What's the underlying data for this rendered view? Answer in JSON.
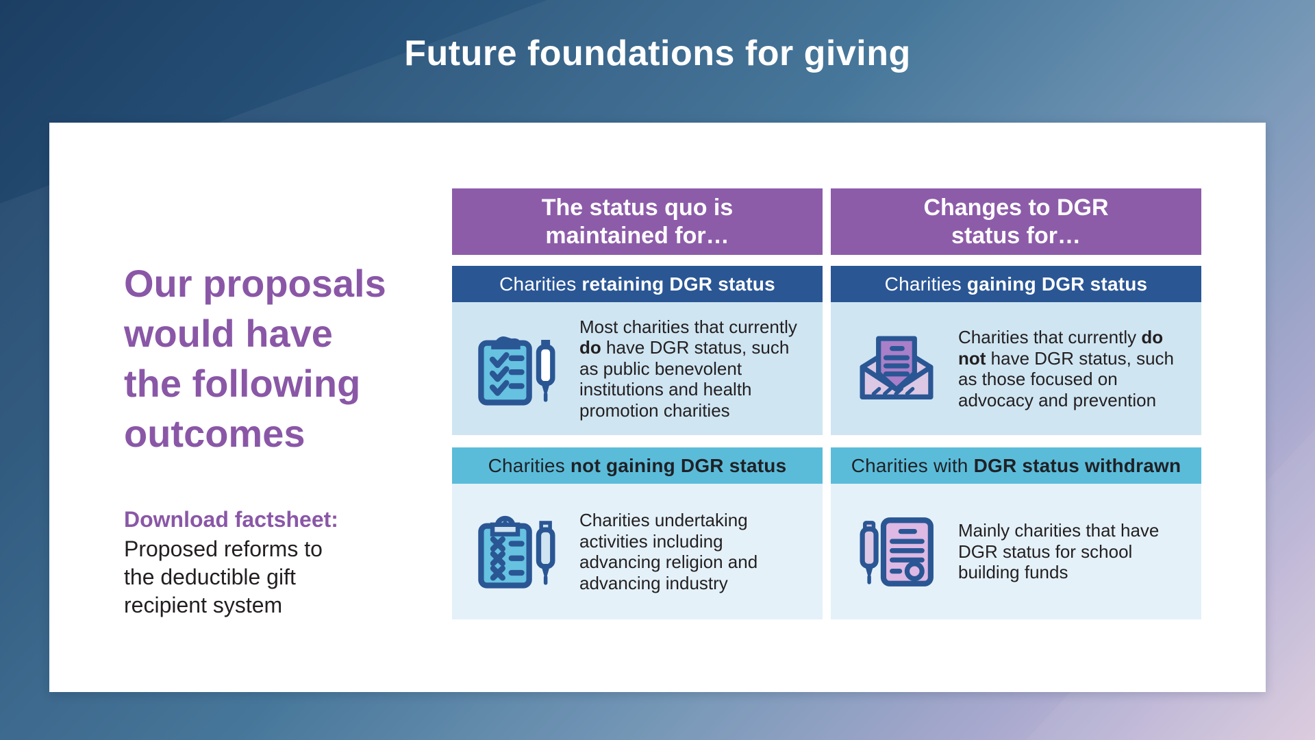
{
  "slide": {
    "title": "Future foundations for giving"
  },
  "left_panel": {
    "heading": "Our proposals\nwould have\nthe following\noutcomes",
    "download_label": "Download factsheet:",
    "download_description": "Proposed reforms to\nthe deductible gift\nrecipient system"
  },
  "grid": {
    "columns": [
      {
        "header": "The status quo is\nmaintained for…",
        "rows": [
          {
            "variant": "dark",
            "icon": "checklist-pen-icon",
            "subheader": [
              {
                "t": "Charities ",
                "b": false
              },
              {
                "t": "retaining DGR status",
                "b": true
              }
            ],
            "body": [
              {
                "t": "Most charities that currently ",
                "b": false
              },
              {
                "t": "do",
                "b": true
              },
              {
                "t": " have DGR status, such as public benevolent institutions and health promotion charities",
                "b": false
              }
            ]
          },
          {
            "variant": "teal",
            "icon": "crosslist-pen-icon",
            "subheader": [
              {
                "t": "Charities ",
                "b": false
              },
              {
                "t": "not gaining DGR status",
                "b": true
              }
            ],
            "body": [
              {
                "t": "Charities undertaking activities including advancing religion and advancing industry",
                "b": false
              }
            ]
          }
        ]
      },
      {
        "header": "Changes to DGR\nstatus for…",
        "rows": [
          {
            "variant": "dark",
            "icon": "envelope-letter-icon",
            "subheader": [
              {
                "t": "Charities ",
                "b": false
              },
              {
                "t": "gaining DGR status",
                "b": true
              }
            ],
            "body": [
              {
                "t": "Charities that currently ",
                "b": false
              },
              {
                "t": "do not",
                "b": true
              },
              {
                "t": " have DGR status, such as those focused on advocacy and prevention",
                "b": false
              }
            ]
          },
          {
            "variant": "teal",
            "icon": "certificate-pen-icon",
            "subheader": [
              {
                "t": "Charities with ",
                "b": false
              },
              {
                "t": "DGR status withdrawn",
                "b": true
              }
            ],
            "body": [
              {
                "t": "Mainly charities that have DGR status for school building funds",
                "b": false
              }
            ]
          }
        ]
      }
    ]
  },
  "colors": {
    "bg_gradient_start": "#1c3e63",
    "bg_gradient_mid": "#3d7095",
    "bg_gradient_end": "#d9c8dd",
    "title_text": "#ffffff",
    "card_bg": "#ffffff",
    "purple_heading_text": "#8a57a7",
    "purple_header_bg": "#8d5ca9",
    "dark_blue": "#2a5694",
    "teal": "#5bbcda",
    "content_bg_row1": "#cfe5f2",
    "content_bg_row2": "#e4f1f9",
    "body_text": "#231f20",
    "icon_teal_fill": "#66c2e0",
    "icon_light_blue_fill": "#cfe4f0",
    "icon_purple_fill": "#a87fc8",
    "icon_lavender_fill": "#dcc8e4",
    "icon_pink_fill": "#ddb9e3"
  }
}
